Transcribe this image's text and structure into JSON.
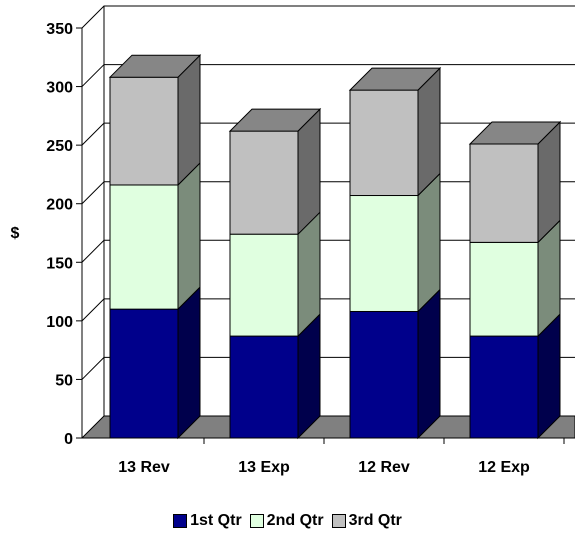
{
  "chart_data": {
    "type": "bar",
    "stacked": true,
    "three_d": true,
    "categories": [
      "13 Rev",
      "13 Exp",
      "12 Rev",
      "12 Exp"
    ],
    "series": [
      {
        "name": "1st Qtr",
        "values": [
          110,
          87,
          108,
          87
        ],
        "color": "#00008B"
      },
      {
        "name": "2nd Qtr",
        "values": [
          106,
          87,
          99,
          80
        ],
        "color": "#E0FFE0"
      },
      {
        "name": "3rd Qtr",
        "values": [
          92,
          88,
          90,
          84
        ],
        "color": "#C0C0C0"
      }
    ],
    "ylabel": "$",
    "ylim": [
      0,
      350
    ],
    "yticks": [
      0,
      50,
      100,
      150,
      200,
      250,
      300,
      350
    ],
    "grid": true,
    "legend_position": "bottom"
  }
}
